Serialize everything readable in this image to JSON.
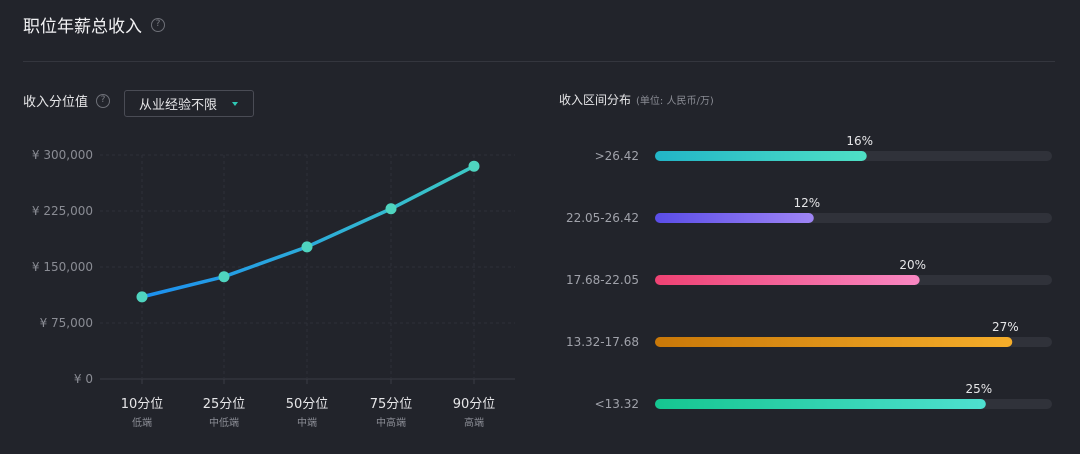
{
  "header": {
    "title": "职位年薪总收入"
  },
  "left": {
    "label": "收入分位值",
    "filter_value": "从业经验不限"
  },
  "right": {
    "title": "收入区间分布",
    "unit": "(单位: 人民币/万)"
  },
  "chart_data": [
    {
      "type": "line",
      "categories": [
        "10分位",
        "25分位",
        "50分位",
        "75分位",
        "90分位"
      ],
      "sublabels": [
        "低端",
        "中低端",
        "中端",
        "中高端",
        "高端"
      ],
      "values": [
        110000,
        137000,
        177000,
        228000,
        285000
      ],
      "ylim": [
        0,
        300000
      ],
      "yticks": [
        "¥ 300,000",
        "¥ 225,000",
        "¥ 150,000",
        "¥ 75,000",
        "¥ 0"
      ],
      "ytick_values": [
        300000,
        225000,
        150000,
        75000,
        0
      ],
      "grid": true,
      "colors": {
        "line_start": "#1c8ff0",
        "line_end": "#3cc8c4",
        "point": "#4fd4bf"
      }
    },
    {
      "type": "bar",
      "orientation": "horizontal",
      "categories": [
        ">26.42",
        "22.05-26.42",
        "17.68-22.05",
        "13.32-17.68",
        "<13.32"
      ],
      "values": [
        16,
        12,
        20,
        27,
        25
      ],
      "value_labels": [
        "16%",
        "12%",
        "20%",
        "27%",
        "25%"
      ],
      "xlim": [
        0,
        30
      ],
      "colors": [
        [
          "#22b5c7",
          "#4fe0c5"
        ],
        [
          "#5a4de8",
          "#9f85f5"
        ],
        [
          "#ef4273",
          "#f887c2"
        ],
        [
          "#c97808",
          "#f5ad2a"
        ],
        [
          "#15c690",
          "#4ee0d0"
        ]
      ],
      "track_color": "#30323a"
    }
  ]
}
